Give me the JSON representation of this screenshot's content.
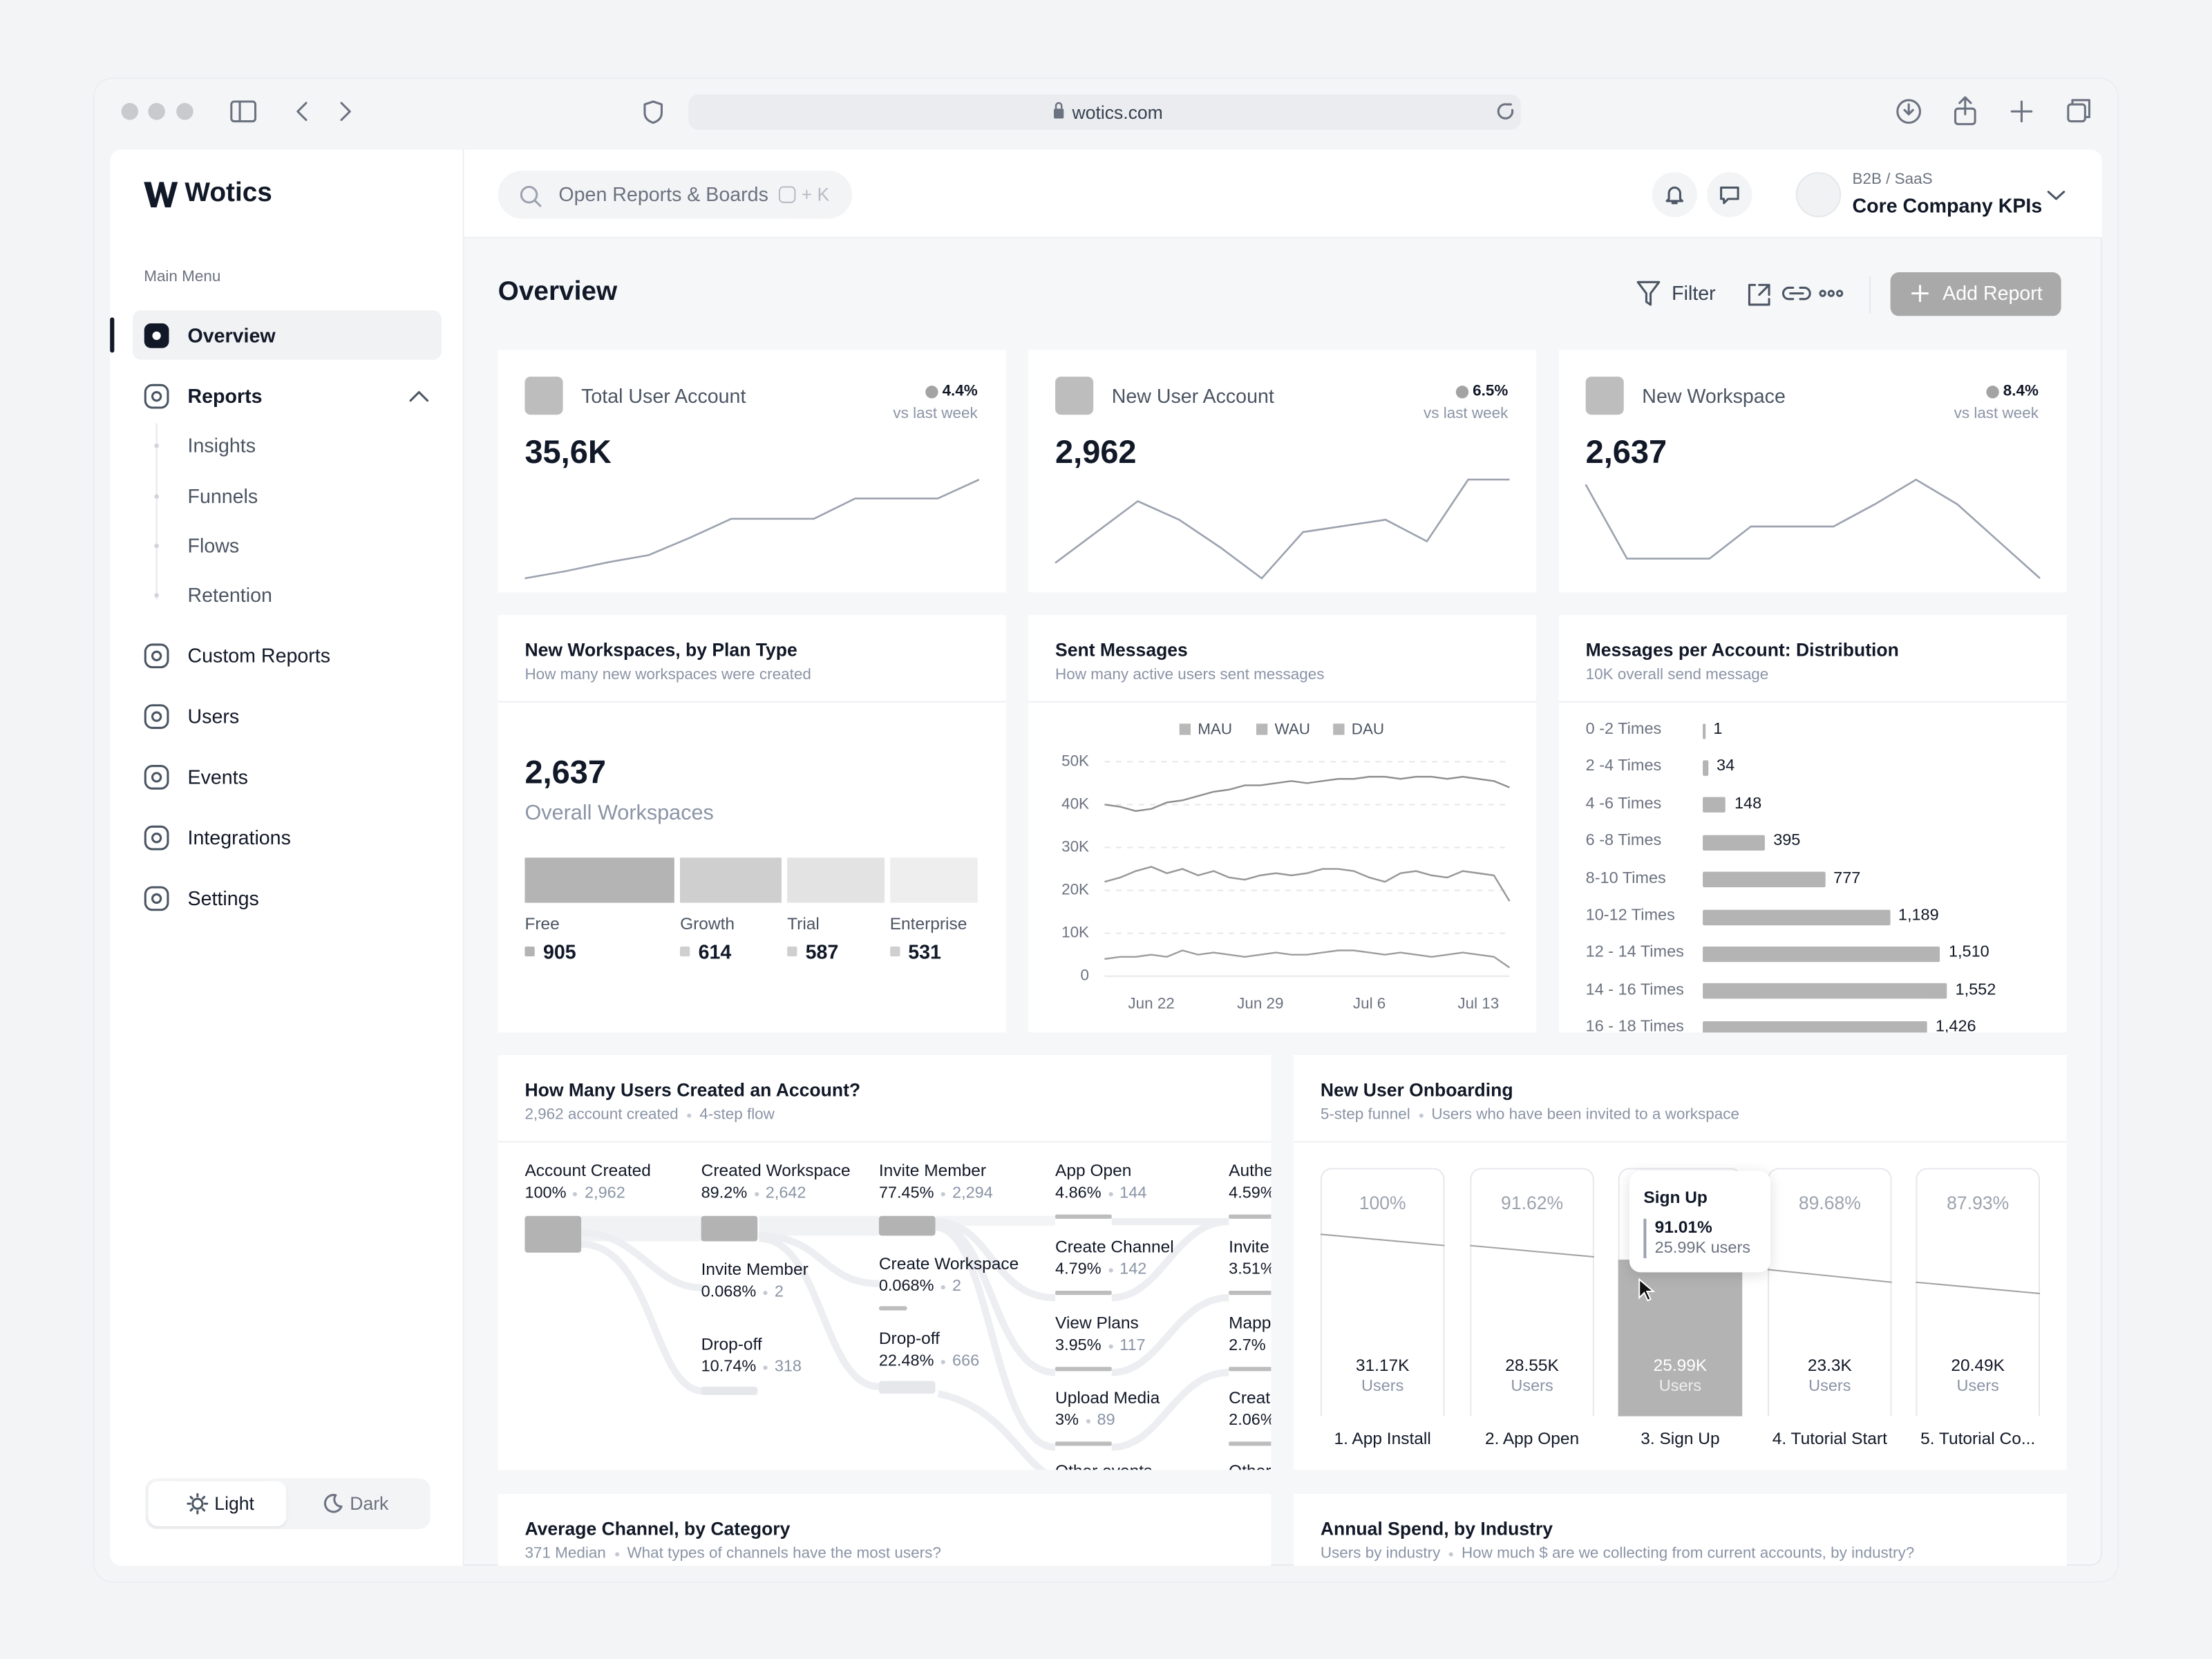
{
  "browser": {
    "url": "wotics.com"
  },
  "sidebar": {
    "brand": "Wotics",
    "menu_label": "Main Menu",
    "items": [
      {
        "label": "Overview"
      },
      {
        "label": "Reports",
        "children": [
          "Insights",
          "Funnels",
          "Flows",
          "Retention"
        ]
      },
      {
        "label": "Custom Reports"
      },
      {
        "label": "Users"
      },
      {
        "label": "Events"
      },
      {
        "label": "Integrations"
      },
      {
        "label": "Settings"
      }
    ],
    "themes": [
      "Light",
      "Dark"
    ]
  },
  "topbar": {
    "search_placeholder": "Open Reports & Boards",
    "shortcut": "+ K",
    "workspace_type": "B2B / SaaS",
    "workspace_name": "Core Company KPIs"
  },
  "header": {
    "title": "Overview",
    "filter": "Filter",
    "add_button": "Add Report"
  },
  "chart_data": [
    {
      "type": "line",
      "title": "Total User Account",
      "value_text": "35,6K",
      "change": "4.4%",
      "comparison": "vs last week",
      "color": "#9ca3af",
      "values": [
        12,
        17,
        23,
        28,
        40,
        53,
        53,
        53,
        67,
        67,
        67,
        80
      ]
    },
    {
      "type": "line",
      "title": "New User Account",
      "value_text": "2,962",
      "change": "6.5%",
      "comparison": "vs last week",
      "color": "#9ca3af",
      "values": [
        53,
        63,
        73,
        67,
        58,
        48,
        63,
        65,
        67,
        60,
        80,
        80
      ]
    },
    {
      "type": "line",
      "title": "New Workspace",
      "value_text": "2,637",
      "change": "8.4%",
      "comparison": "vs last week",
      "color": "#9ca3af",
      "values": [
        78,
        48,
        48,
        48,
        61,
        61,
        61,
        70,
        80,
        70,
        55,
        40
      ]
    },
    {
      "type": "stacked",
      "title": "New Workspaces, by Plan Type",
      "subtitle": "How many new workspaces were created",
      "total_text": "2,637",
      "total_label": "Overall Workspaces",
      "categories": [
        "Free",
        "Growth",
        "Trial",
        "Enterprise"
      ],
      "values": [
        905,
        614,
        587,
        531
      ],
      "colors": [
        "#b4b4b4",
        "#cfcfcf",
        "#e3e3e3",
        "#eeeeee"
      ]
    },
    {
      "type": "line",
      "title": "Sent Messages",
      "subtitle": "How many active users sent messages",
      "grid": true,
      "categories": [
        null,
        null,
        null,
        "Jun 22",
        null,
        null,
        null,
        null,
        null,
        null,
        "Jun 29",
        null,
        null,
        null,
        null,
        null,
        null,
        "Jul 6",
        null,
        null,
        null,
        null,
        null,
        null,
        "Jul 13",
        null,
        null
      ],
      "ylim": [
        0,
        50000
      ],
      "yticks": [
        0,
        {
          "value": 10000,
          "label": "10K"
        },
        {
          "value": 20000,
          "label": "20K"
        },
        {
          "value": 30000,
          "label": "30K"
        },
        {
          "value": 40000,
          "label": "40K"
        },
        {
          "value": 50000,
          "label": "50K"
        }
      ],
      "series": [
        {
          "name": "MAU",
          "color": "#8f8f8f",
          "values": [
            40000,
            39500,
            38500,
            39000,
            40500,
            41000,
            42000,
            43000,
            43500,
            44500,
            44500,
            45000,
            45500,
            45000,
            45500,
            46000,
            46000,
            46500,
            46500,
            46000,
            46500,
            46500,
            46000,
            46500,
            46000,
            45500,
            44000
          ]
        },
        {
          "name": "WAU",
          "color": "#979797",
          "values": [
            22000,
            23000,
            24500,
            25500,
            24000,
            25000,
            23500,
            24500,
            23000,
            22500,
            23500,
            24000,
            23500,
            24000,
            25000,
            25000,
            24500,
            23000,
            22000,
            24000,
            24500,
            23500,
            23000,
            24500,
            24000,
            23500,
            17500
          ]
        },
        {
          "name": "DAU",
          "color": "#9d9d9d",
          "values": [
            4000,
            4500,
            4500,
            5000,
            4500,
            6000,
            5000,
            5500,
            5000,
            4500,
            5000,
            5500,
            5000,
            5000,
            5500,
            6000,
            6000,
            5500,
            5000,
            5500,
            5000,
            4500,
            5000,
            5500,
            5000,
            4500,
            2000
          ]
        }
      ]
    },
    {
      "type": "bar",
      "orientation": "horizontal",
      "title": "Messages per Account: Distribution",
      "subtitle": "10K overall send message",
      "color": "#b4b4b4",
      "categories": [
        "0 -2 Times",
        "2 -4 Times",
        "4 -6 Times",
        "6 -8 Times",
        "8-10 Times",
        "10-12 Times",
        "12 - 14 Times",
        "14 - 16 Times",
        "16 - 18 Times"
      ],
      "values": [
        1,
        34,
        148,
        395,
        777,
        1189,
        1510,
        1552,
        1426
      ],
      "value_labels": [
        "1",
        "34",
        "148",
        "395",
        "777",
        "1,189",
        "1,510",
        "1,552",
        "1,426"
      ]
    }
  ],
  "flow": {
    "title": "How Many Users Created an Account?",
    "meta": [
      "2,962 account created",
      "4-step flow"
    ],
    "columns": [
      [
        {
          "label": "Account Created",
          "percent": "100%",
          "count": "2,962"
        }
      ],
      [
        {
          "label": "Created Workspace",
          "percent": "89.2%",
          "count": "2,642"
        },
        {
          "label": "Invite Member",
          "percent": "0.068%",
          "count": "2"
        },
        {
          "label": "Drop-off",
          "percent": "10.74%",
          "count": "318"
        }
      ],
      [
        {
          "label": "Invite Member",
          "percent": "77.45%",
          "count": "2,294"
        },
        {
          "label": "Create Workspace",
          "percent": "0.068%",
          "count": "2"
        },
        {
          "label": "Drop-off",
          "percent": "22.48%",
          "count": "666"
        }
      ],
      [
        {
          "label": "App Open",
          "percent": "4.86%",
          "count": "144"
        },
        {
          "label": "Create Channel",
          "percent": "4.79%",
          "count": "142"
        },
        {
          "label": "View Plans",
          "percent": "3.95%",
          "count": "117"
        },
        {
          "label": "Upload Media",
          "percent": "3%",
          "count": "89"
        },
        {
          "label": "Other events"
        }
      ],
      [
        {
          "label": "Authe",
          "percent": "4.59%"
        },
        {
          "label": "Invite",
          "percent": "3.51%"
        },
        {
          "label": "Mapp",
          "percent": "2.7%"
        },
        {
          "label": "Creat",
          "percent": "2.06%"
        },
        {
          "label": "Other"
        }
      ]
    ]
  },
  "onboarding": {
    "title": "New User Onboarding",
    "meta": [
      "5-step funnel",
      "Users who have been invited to a workspace"
    ],
    "steps": [
      {
        "label": "1. App Install",
        "percent": "100%",
        "count": "31.17K",
        "unit": "Users"
      },
      {
        "label": "2. App Open",
        "percent": "91.62%",
        "count": "28.55K",
        "unit": "Users"
      },
      {
        "label": "3. Sign Up",
        "count": "25.99K",
        "unit": "Users"
      },
      {
        "label": "4. Tutorial Start",
        "percent": "89.68%",
        "count": "23.3K",
        "unit": "Users"
      },
      {
        "label": "5. Tutorial Co...",
        "percent": "87.93%",
        "count": "20.49K",
        "unit": "Users"
      }
    ],
    "tooltip": {
      "title": "Sign Up",
      "percent": "91.01%",
      "users": "25.99K users"
    }
  },
  "more_cards": [
    {
      "title": "Average Channel, by Category",
      "meta": [
        "371 Median",
        "What types of channels have the most users?"
      ]
    },
    {
      "title": "Annual Spend, by Industry",
      "meta": [
        "Users by industry",
        "How much $ are we collecting from current accounts, by industry?"
      ]
    }
  ]
}
